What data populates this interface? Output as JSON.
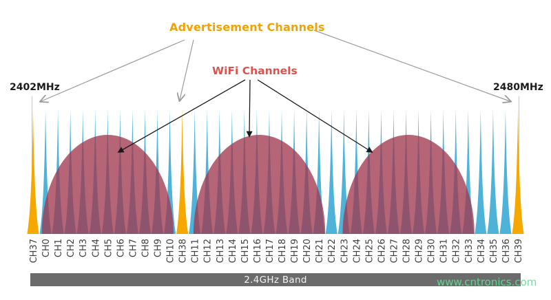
{
  "header": {
    "advertisement_label": "Advertisement Channels",
    "wifi_label": "WiFi Channels",
    "freq_left": "2402MHz",
    "freq_right": "2480MHz"
  },
  "footer": {
    "band_label": "2.4GHz Band",
    "watermark": "www.cntronics.com"
  },
  "colors": {
    "adv_text": "#f0a202",
    "wifi_text": "#d9534f",
    "freq_text": "#1c1c1c",
    "data_spike": "#4fb2d8",
    "adv_spike": "#f5a800",
    "wifi_hump": "#a03a4f",
    "band_bar": "#6b6b6b",
    "band_text": "#f4f4f4",
    "watermark": "#62dd96",
    "channel_label": "#3d3d3d",
    "arrow_gray": "#9a9a9a",
    "arrow_black": "#1a1a1a",
    "edge_line": "#c4c4c4"
  },
  "chart_data": {
    "type": "area",
    "x_axis": {
      "start_label": "2402MHz",
      "end_label": "2480MHz",
      "band_label": "2.4GHz Band"
    },
    "channels": [
      "CH37",
      "CH0",
      "CH1",
      "CH2",
      "CH3",
      "CH4",
      "CH5",
      "CH6",
      "CH7",
      "CH8",
      "CH9",
      "CH10",
      "CH38",
      "CH11",
      "CH12",
      "CH13",
      "CH14",
      "CH15",
      "CH16",
      "CH17",
      "CH18",
      "CH19",
      "CH20",
      "CH21",
      "CH22",
      "CH23",
      "CH24",
      "CH25",
      "CH26",
      "CH27",
      "CH28",
      "CH29",
      "CH30",
      "CH31",
      "CH32",
      "CH33",
      "CH34",
      "CH35",
      "CH36",
      "CH39"
    ],
    "advertisement_channels": [
      "CH37",
      "CH38",
      "CH39"
    ],
    "wifi_humps": [
      {
        "center_channel_index": 6.0,
        "half_width_channels": 5.3
      },
      {
        "center_channel_index": 18.2,
        "half_width_channels": 5.3
      },
      {
        "center_channel_index": 30.2,
        "half_width_channels": 5.3
      }
    ]
  }
}
